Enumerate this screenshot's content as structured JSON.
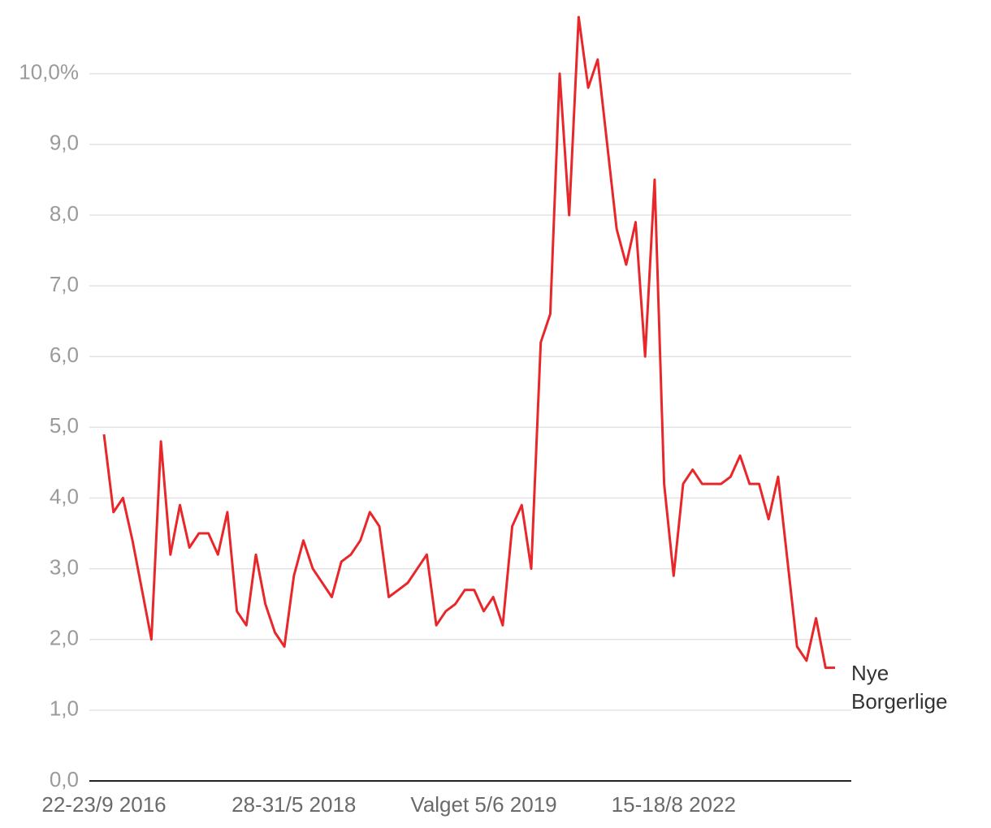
{
  "chart_data": {
    "type": "line",
    "categories": [
      "22-23/9 2016",
      null,
      null,
      null,
      null,
      null,
      null,
      null,
      null,
      null,
      null,
      null,
      null,
      null,
      null,
      null,
      null,
      null,
      null,
      null,
      "28-31/5 2018",
      null,
      null,
      null,
      null,
      null,
      null,
      null,
      null,
      null,
      null,
      null,
      null,
      null,
      null,
      null,
      null,
      null,
      null,
      null,
      "Valget 5/6 2019",
      null,
      null,
      null,
      null,
      null,
      null,
      null,
      null,
      null,
      null,
      null,
      null,
      null,
      null,
      null,
      null,
      null,
      null,
      null,
      "15-18/8 2022",
      null,
      null,
      null,
      null,
      null,
      null,
      null,
      null,
      null,
      null,
      null,
      null,
      null,
      null,
      null,
      null,
      null
    ],
    "series": [
      {
        "name": "Nye Borgerlige",
        "color": "#e8272a",
        "values": [
          4.9,
          3.8,
          4.0,
          3.4,
          2.7,
          2.0,
          4.8,
          3.2,
          3.9,
          3.3,
          3.5,
          3.5,
          3.2,
          3.8,
          2.4,
          2.2,
          3.2,
          2.5,
          2.1,
          1.9,
          2.9,
          3.4,
          3.0,
          2.8,
          2.6,
          3.1,
          3.2,
          3.4,
          3.8,
          3.6,
          2.6,
          2.7,
          2.8,
          3.0,
          3.2,
          2.2,
          2.4,
          2.5,
          2.7,
          2.7,
          2.4,
          2.6,
          2.2,
          3.6,
          3.9,
          3.0,
          6.2,
          6.6,
          10.0,
          8.0,
          10.8,
          9.8,
          10.2,
          9.0,
          7.8,
          7.3,
          7.9,
          6.0,
          8.5,
          4.2,
          2.9,
          4.2,
          4.4,
          4.2,
          4.2,
          4.2,
          4.3,
          4.6,
          4.2,
          4.2,
          3.7,
          4.3,
          3.1,
          1.9,
          1.7,
          2.3,
          1.6,
          1.6
        ]
      }
    ],
    "ylim": [
      0,
      10.8
    ],
    "yticks": [
      {
        "value": 0,
        "label": "0,0"
      },
      {
        "value": 1,
        "label": "1,0"
      },
      {
        "value": 2,
        "label": "2,0"
      },
      {
        "value": 3,
        "label": "3,0"
      },
      {
        "value": 4,
        "label": "4,0"
      },
      {
        "value": 5,
        "label": "5,0"
      },
      {
        "value": 6,
        "label": "6,0"
      },
      {
        "value": 7,
        "label": "7,0"
      },
      {
        "value": 8,
        "label": "8,0"
      },
      {
        "value": 9,
        "label": "9,0"
      },
      {
        "value": 10,
        "label": "10,0%"
      }
    ],
    "grid": true
  }
}
